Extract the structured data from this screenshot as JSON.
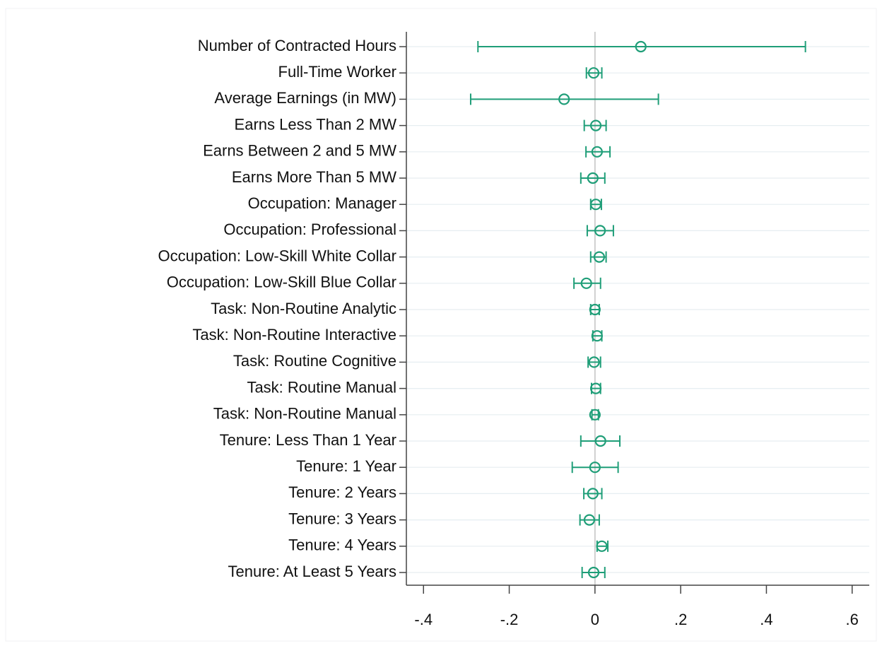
{
  "chart_data": {
    "type": "coefplot",
    "categories": [
      "Number of Contracted Hours",
      "Full-Time Worker",
      "Average Earnings (in MW)",
      "Earns Less Than 2 MW",
      "Earns Between 2 and 5 MW",
      "Earns More Than 5 MW",
      "Occupation: Manager",
      "Occupation: Professional",
      "Occupation: Low-Skill White Collar",
      "Occupation: Low-Skill Blue Collar",
      "Task: Non-Routine Analytic",
      "Task: Non-Routine Interactive",
      "Task: Routine Cognitive",
      "Task: Routine Manual",
      "Task: Non-Routine Manual",
      "Tenure: Less Than 1 Year",
      "Tenure: 1 Year",
      "Tenure: 2 Years",
      "Tenure: 3 Years",
      "Tenure: 4 Years",
      "Tenure: At Least 5 Years"
    ],
    "values": [
      0.107,
      -0.003,
      -0.072,
      0.002,
      0.005,
      -0.005,
      0.002,
      0.012,
      0.01,
      -0.02,
      0,
      0.005,
      -0.002,
      0.002,
      0,
      0.013,
      0,
      -0.005,
      -0.013,
      0.016,
      -0.003
    ],
    "lower": [
      -0.273,
      -0.02,
      -0.29,
      -0.025,
      -0.021,
      -0.033,
      -0.01,
      -0.018,
      -0.01,
      -0.049,
      -0.01,
      -0.005,
      -0.016,
      -0.008,
      -0.007,
      -0.033,
      -0.053,
      -0.026,
      -0.035,
      0.005,
      -0.03
    ],
    "upper": [
      0.491,
      0.016,
      0.148,
      0.026,
      0.035,
      0.023,
      0.015,
      0.043,
      0.026,
      0.013,
      0.01,
      0.016,
      0.013,
      0.013,
      0.008,
      0.058,
      0.054,
      0.016,
      0.01,
      0.03,
      0.023
    ],
    "color": "#1f9e78",
    "xlim": [
      -0.44,
      0.64
    ],
    "xticks": [
      {
        "value": -0.4,
        "label": "-.4"
      },
      {
        "value": -0.2,
        "label": "-.2"
      },
      0,
      {
        "value": 0.2,
        "label": ".2"
      },
      {
        "value": 0.4,
        "label": ".4"
      },
      {
        "value": 0.6,
        "label": ".6"
      }
    ],
    "xline": 0,
    "grid": true
  }
}
